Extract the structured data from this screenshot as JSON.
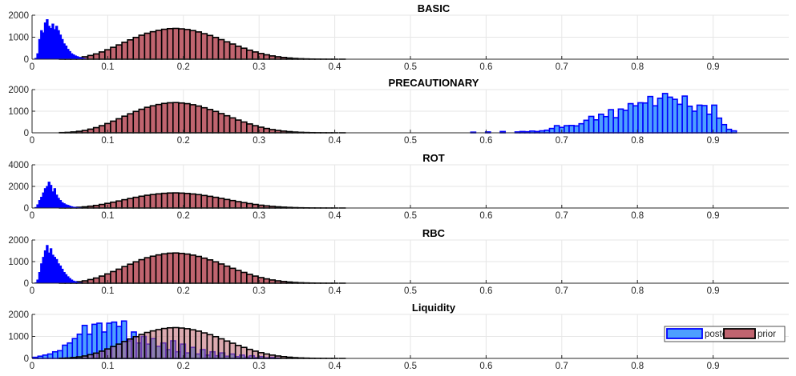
{
  "colors": {
    "prior_fill": "#c0646f",
    "prior_edge": "#000000",
    "posterior_fill_light": "#4d9fff",
    "posterior_edge": "#0000ff",
    "grid": "#e6e6e6",
    "axis": "#262626"
  },
  "chart_data": [
    {
      "type": "bar",
      "title": "BASIC",
      "xlim": [
        0,
        1
      ],
      "ylim": [
        0,
        2000
      ],
      "xticks": [
        "0",
        "0.1",
        "0.2",
        "0.3",
        "0.4",
        "0.5",
        "0.6",
        "0.7",
        "0.8",
        "0.9"
      ],
      "yticks": [
        "0",
        "1000",
        "2000"
      ],
      "grid": true,
      "series": [
        {
          "name": "prior",
          "style": "prior",
          "bin_width": 0.0075,
          "x": [
            0.04,
            0.0475,
            0.055,
            0.0625,
            0.07,
            0.0775,
            0.085,
            0.0925,
            0.1,
            0.1075,
            0.115,
            0.1225,
            0.13,
            0.1375,
            0.145,
            0.1525,
            0.16,
            0.1675,
            0.175,
            0.1825,
            0.19,
            0.1975,
            0.205,
            0.2125,
            0.22,
            0.2275,
            0.235,
            0.2425,
            0.25,
            0.2575,
            0.265,
            0.2725,
            0.28,
            0.2875,
            0.295,
            0.3025,
            0.31,
            0.3175,
            0.325,
            0.3325,
            0.34,
            0.3475,
            0.355,
            0.3625,
            0.37,
            0.3775,
            0.385,
            0.3925,
            0.4,
            0.41
          ],
          "values": [
            10,
            20,
            40,
            70,
            110,
            170,
            240,
            330,
            430,
            540,
            650,
            770,
            880,
            990,
            1090,
            1180,
            1250,
            1310,
            1360,
            1390,
            1400,
            1380,
            1350,
            1300,
            1240,
            1160,
            1080,
            990,
            890,
            790,
            690,
            590,
            500,
            410,
            330,
            260,
            200,
            150,
            110,
            80,
            55,
            35,
            22,
            14,
            8,
            5,
            3,
            2,
            1,
            1
          ]
        },
        {
          "name": "posterior",
          "style": "posterior_solid",
          "bin_width": 0.0025,
          "x": [
            0.005,
            0.0075,
            0.01,
            0.0125,
            0.015,
            0.0175,
            0.02,
            0.0225,
            0.025,
            0.0275,
            0.03,
            0.0325,
            0.035,
            0.0375,
            0.04,
            0.0425,
            0.045,
            0.0475,
            0.05,
            0.0525,
            0.055,
            0.0575,
            0.06,
            0.0625,
            0.065,
            0.0675,
            0.07
          ],
          "values": [
            40,
            250,
            900,
            1300,
            1200,
            1650,
            1800,
            1500,
            1400,
            1600,
            1350,
            1500,
            1300,
            1100,
            900,
            700,
            600,
            450,
            350,
            250,
            200,
            150,
            120,
            80,
            60,
            40,
            20
          ]
        }
      ]
    },
    {
      "type": "bar",
      "title": "PRECAUTIONARY",
      "xlim": [
        0,
        1
      ],
      "ylim": [
        0,
        2000
      ],
      "xticks": [
        "0",
        "0.1",
        "0.2",
        "0.3",
        "0.4",
        "0.5",
        "0.6",
        "0.7",
        "0.8",
        "0.9"
      ],
      "yticks": [
        "0",
        "1000",
        "2000"
      ],
      "grid": true,
      "series": [
        {
          "name": "prior",
          "style": "prior",
          "bin_width": 0.0075,
          "x": [
            0.04,
            0.0475,
            0.055,
            0.0625,
            0.07,
            0.0775,
            0.085,
            0.0925,
            0.1,
            0.1075,
            0.115,
            0.1225,
            0.13,
            0.1375,
            0.145,
            0.1525,
            0.16,
            0.1675,
            0.175,
            0.1825,
            0.19,
            0.1975,
            0.205,
            0.2125,
            0.22,
            0.2275,
            0.235,
            0.2425,
            0.25,
            0.2575,
            0.265,
            0.2725,
            0.28,
            0.2875,
            0.295,
            0.3025,
            0.31,
            0.3175,
            0.325,
            0.3325,
            0.34,
            0.3475,
            0.355,
            0.3625,
            0.37,
            0.3775,
            0.385,
            0.3925,
            0.4,
            0.41
          ],
          "values": [
            10,
            20,
            40,
            70,
            110,
            170,
            240,
            330,
            430,
            540,
            650,
            770,
            880,
            990,
            1090,
            1180,
            1250,
            1310,
            1360,
            1390,
            1400,
            1380,
            1350,
            1300,
            1240,
            1160,
            1080,
            990,
            890,
            790,
            690,
            590,
            500,
            410,
            330,
            260,
            200,
            150,
            110,
            80,
            55,
            35,
            22,
            14,
            8,
            5,
            3,
            2,
            1,
            1
          ]
        },
        {
          "name": "posterior",
          "style": "posterior_light",
          "bin_width": 0.0065,
          "x": [
            0.583,
            0.6025,
            0.622,
            0.6415,
            0.648,
            0.6545,
            0.661,
            0.6675,
            0.674,
            0.6805,
            0.687,
            0.6935,
            0.7,
            0.7065,
            0.713,
            0.7195,
            0.726,
            0.7325,
            0.739,
            0.7455,
            0.752,
            0.7585,
            0.765,
            0.7715,
            0.778,
            0.7845,
            0.791,
            0.7975,
            0.804,
            0.8105,
            0.817,
            0.8235,
            0.83,
            0.8365,
            0.843,
            0.8495,
            0.856,
            0.8625,
            0.869,
            0.8755,
            0.882,
            0.8885,
            0.895,
            0.9015,
            0.908,
            0.9145,
            0.921,
            0.9275
          ],
          "values": [
            30,
            40,
            60,
            40,
            60,
            50,
            80,
            60,
            90,
            120,
            200,
            330,
            250,
            330,
            340,
            320,
            420,
            580,
            760,
            600,
            860,
            750,
            1070,
            700,
            1100,
            1040,
            1350,
            1250,
            1390,
            1380,
            1680,
            1250,
            1600,
            1820,
            1650,
            1550,
            1320,
            1700,
            1230,
            1000,
            1280,
            1260,
            860,
            1280,
            680,
            380,
            160,
            90
          ]
        }
      ]
    },
    {
      "type": "bar",
      "title": "ROT",
      "xlim": [
        0,
        1
      ],
      "ylim": [
        0,
        4000
      ],
      "xticks": [
        "0",
        "0.1",
        "0.2",
        "0.3",
        "0.4",
        "0.5",
        "0.6",
        "0.7",
        "0.8",
        "0.9"
      ],
      "yticks": [
        "0",
        "2000",
        "4000"
      ],
      "grid": true,
      "series": [
        {
          "name": "prior",
          "style": "prior",
          "bin_width": 0.0075,
          "x": [
            0.04,
            0.0475,
            0.055,
            0.0625,
            0.07,
            0.0775,
            0.085,
            0.0925,
            0.1,
            0.1075,
            0.115,
            0.1225,
            0.13,
            0.1375,
            0.145,
            0.1525,
            0.16,
            0.1675,
            0.175,
            0.1825,
            0.19,
            0.1975,
            0.205,
            0.2125,
            0.22,
            0.2275,
            0.235,
            0.2425,
            0.25,
            0.2575,
            0.265,
            0.2725,
            0.28,
            0.2875,
            0.295,
            0.3025,
            0.31,
            0.3175,
            0.325,
            0.3325,
            0.34,
            0.3475,
            0.355,
            0.3625,
            0.37,
            0.3775,
            0.385,
            0.3925,
            0.4,
            0.41
          ],
          "values": [
            10,
            20,
            40,
            70,
            110,
            170,
            240,
            330,
            430,
            540,
            650,
            770,
            880,
            990,
            1090,
            1180,
            1250,
            1310,
            1360,
            1390,
            1400,
            1380,
            1350,
            1300,
            1240,
            1160,
            1080,
            990,
            890,
            790,
            690,
            590,
            500,
            410,
            330,
            260,
            200,
            150,
            110,
            80,
            55,
            35,
            22,
            14,
            8,
            5,
            3,
            2,
            1,
            1
          ]
        },
        {
          "name": "posterior",
          "style": "posterior_solid",
          "bin_width": 0.0025,
          "x": [
            0.005,
            0.0075,
            0.01,
            0.0125,
            0.015,
            0.0175,
            0.02,
            0.0225,
            0.025,
            0.0275,
            0.03,
            0.0325,
            0.035,
            0.0375,
            0.04,
            0.0425,
            0.045,
            0.0475,
            0.05,
            0.0525,
            0.055,
            0.0575,
            0.06,
            0.0625,
            0.065
          ],
          "values": [
            50,
            300,
            700,
            1000,
            1400,
            1800,
            2000,
            2400,
            2100,
            1500,
            1800,
            1200,
            900,
            700,
            500,
            400,
            300,
            250,
            180,
            120,
            80,
            60,
            40,
            20,
            10
          ]
        }
      ]
    },
    {
      "type": "bar",
      "title": "RBC",
      "xlim": [
        0,
        1
      ],
      "ylim": [
        0,
        2000
      ],
      "xticks": [
        "0",
        "0.1",
        "0.2",
        "0.3",
        "0.4",
        "0.5",
        "0.6",
        "0.7",
        "0.8",
        "0.9"
      ],
      "yticks": [
        "0",
        "1000",
        "2000"
      ],
      "grid": true,
      "series": [
        {
          "name": "prior",
          "style": "prior",
          "bin_width": 0.0075,
          "x": [
            0.04,
            0.0475,
            0.055,
            0.0625,
            0.07,
            0.0775,
            0.085,
            0.0925,
            0.1,
            0.1075,
            0.115,
            0.1225,
            0.13,
            0.1375,
            0.145,
            0.1525,
            0.16,
            0.1675,
            0.175,
            0.1825,
            0.19,
            0.1975,
            0.205,
            0.2125,
            0.22,
            0.2275,
            0.235,
            0.2425,
            0.25,
            0.2575,
            0.265,
            0.2725,
            0.28,
            0.2875,
            0.295,
            0.3025,
            0.31,
            0.3175,
            0.325,
            0.3325,
            0.34,
            0.3475,
            0.355,
            0.3625,
            0.37,
            0.3775,
            0.385,
            0.3925,
            0.4,
            0.41
          ],
          "values": [
            10,
            20,
            40,
            70,
            110,
            170,
            240,
            330,
            430,
            540,
            650,
            770,
            880,
            990,
            1090,
            1180,
            1250,
            1310,
            1360,
            1390,
            1400,
            1380,
            1350,
            1300,
            1240,
            1160,
            1080,
            990,
            890,
            790,
            690,
            590,
            500,
            410,
            330,
            260,
            200,
            150,
            110,
            80,
            55,
            35,
            22,
            14,
            8,
            5,
            3,
            2,
            1,
            1
          ]
        },
        {
          "name": "posterior",
          "style": "posterior_solid",
          "bin_width": 0.0025,
          "x": [
            0.005,
            0.0075,
            0.01,
            0.0125,
            0.015,
            0.0175,
            0.02,
            0.0225,
            0.025,
            0.0275,
            0.03,
            0.0325,
            0.035,
            0.0375,
            0.04,
            0.0425,
            0.045,
            0.0475,
            0.05,
            0.0525,
            0.055,
            0.0575,
            0.06,
            0.0625,
            0.065
          ],
          "values": [
            20,
            150,
            500,
            900,
            1200,
            1500,
            1750,
            1400,
            1600,
            1300,
            1200,
            1100,
            900,
            800,
            650,
            500,
            400,
            300,
            220,
            150,
            100,
            70,
            40,
            20,
            10
          ]
        }
      ]
    },
    {
      "type": "bar",
      "title": "Liquidity",
      "xlim": [
        0,
        1
      ],
      "ylim": [
        0,
        2000
      ],
      "xticks": [
        "0",
        "0.1",
        "0.2",
        "0.3",
        "0.4",
        "0.5",
        "0.6",
        "0.7",
        "0.8",
        "0.9"
      ],
      "yticks": [
        "0",
        "1000",
        "2000"
      ],
      "grid": true,
      "legend": {
        "position": "right",
        "entries": [
          "posterior",
          "prior"
        ]
      },
      "series": [
        {
          "name": "posterior",
          "style": "posterior_light",
          "bin_width": 0.0065,
          "x": [
            0.0045,
            0.011,
            0.0175,
            0.024,
            0.0305,
            0.037,
            0.0435,
            0.05,
            0.0565,
            0.063,
            0.0695,
            0.076,
            0.0825,
            0.089,
            0.0955,
            0.102,
            0.1085,
            0.115,
            0.1215,
            0.128,
            0.1345,
            0.141,
            0.1475,
            0.154,
            0.1605,
            0.167,
            0.1735,
            0.18,
            0.1865,
            0.193,
            0.1995,
            0.206,
            0.2125,
            0.219,
            0.2255,
            0.232,
            0.2385,
            0.245,
            0.2515,
            0.258,
            0.2645,
            0.271,
            0.2775,
            0.284,
            0.2905,
            0.297,
            0.3035,
            0.31,
            0.3165,
            0.323
          ],
          "values": [
            50,
            100,
            150,
            200,
            300,
            350,
            600,
            700,
            900,
            1100,
            1500,
            1100,
            1550,
            1600,
            1200,
            1600,
            1650,
            1450,
            1700,
            800,
            1200,
            700,
            1000,
            650,
            900,
            550,
            700,
            400,
            800,
            300,
            650,
            250,
            500,
            200,
            400,
            150,
            300,
            120,
            250,
            100,
            200,
            80,
            150,
            60,
            120,
            40,
            80,
            30,
            50,
            20
          ]
        },
        {
          "name": "prior",
          "style": "prior_transparent",
          "bin_width": 0.0075,
          "x": [
            0.04,
            0.0475,
            0.055,
            0.0625,
            0.07,
            0.0775,
            0.085,
            0.0925,
            0.1,
            0.1075,
            0.115,
            0.1225,
            0.13,
            0.1375,
            0.145,
            0.1525,
            0.16,
            0.1675,
            0.175,
            0.1825,
            0.19,
            0.1975,
            0.205,
            0.2125,
            0.22,
            0.2275,
            0.235,
            0.2425,
            0.25,
            0.2575,
            0.265,
            0.2725,
            0.28,
            0.2875,
            0.295,
            0.3025,
            0.31,
            0.3175,
            0.325,
            0.3325,
            0.34,
            0.3475,
            0.355,
            0.3625,
            0.37,
            0.3775,
            0.385,
            0.3925,
            0.4,
            0.41
          ],
          "values": [
            10,
            20,
            40,
            70,
            110,
            170,
            240,
            330,
            430,
            540,
            650,
            770,
            880,
            990,
            1090,
            1180,
            1250,
            1310,
            1360,
            1390,
            1400,
            1380,
            1350,
            1300,
            1240,
            1160,
            1080,
            990,
            890,
            790,
            690,
            590,
            500,
            410,
            330,
            260,
            200,
            150,
            110,
            80,
            55,
            35,
            22,
            14,
            8,
            5,
            3,
            2,
            1,
            1
          ]
        }
      ]
    }
  ]
}
